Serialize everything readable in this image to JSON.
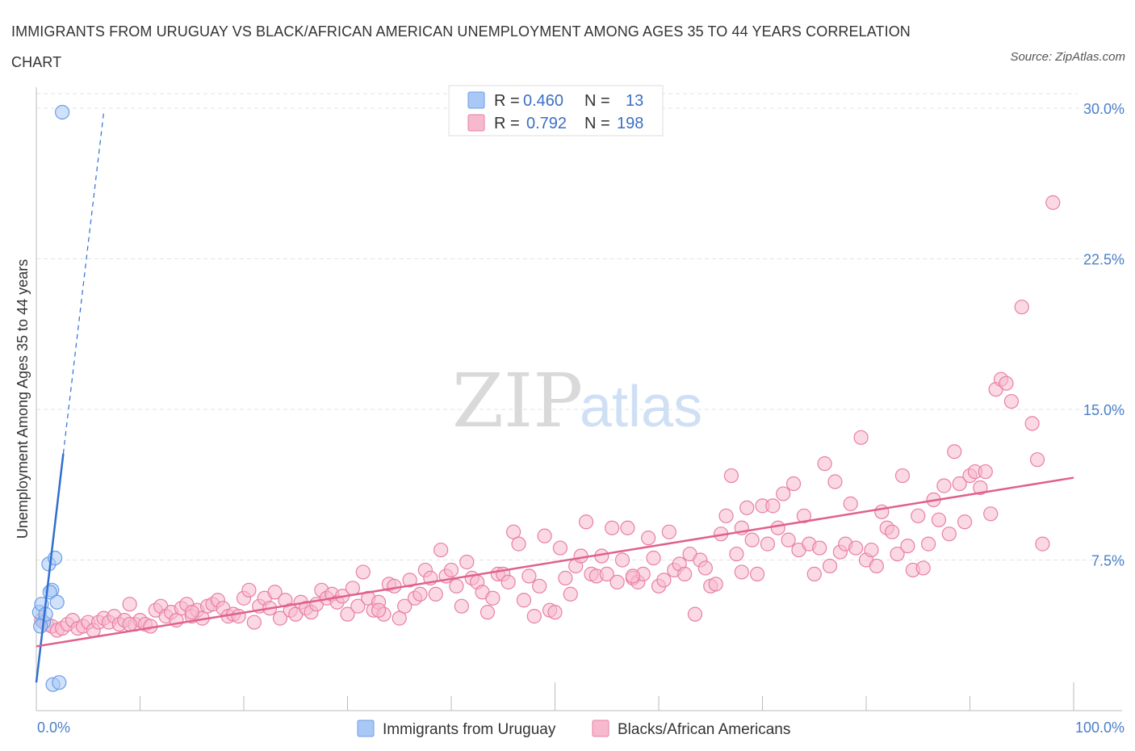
{
  "title": "IMMIGRANTS FROM URUGUAY VS BLACK/AFRICAN AMERICAN UNEMPLOYMENT AMONG AGES 35 TO 44 YEARS CORRELATION CHART",
  "source": "Source: ZipAtlas.com",
  "watermark": {
    "zip": "ZIP",
    "atlas": "atlas"
  },
  "legend": {
    "rows": [
      {
        "r_label": "R = ",
        "r_value": "0.460",
        "n_label": "N = ",
        "n_value": "13",
        "color": "#a9c8f5"
      },
      {
        "r_label": "R = ",
        "r_value": "0.792",
        "n_label": "N = ",
        "n_value": "198",
        "color": "#f7b9cd"
      }
    ]
  },
  "chart_data": {
    "type": "scatter",
    "xlabel": "",
    "ylabel": "Unemployment Among Ages 35 to 44 years",
    "xlim": [
      0,
      100
    ],
    "ylim": [
      0,
      30
    ],
    "x_tick_labels": [
      "0.0%",
      "100.0%"
    ],
    "y_ticks": [
      7.5,
      15.0,
      22.5,
      30.0
    ],
    "y_tick_labels": [
      "7.5%",
      "15.0%",
      "22.5%",
      "30.0%"
    ],
    "grid": true,
    "legend_position": "bottom-center",
    "series": [
      {
        "name": "Immigrants from Uruguay",
        "color": "#6a9ee8",
        "fill": "#a9c8f5",
        "trend": {
          "x": [
            0.0,
            2.6
          ],
          "y": [
            1.4,
            12.8
          ],
          "dashed_to": [
            6.5,
            29.8
          ],
          "color": "#2f6fd0"
        },
        "points": [
          [
            2.5,
            29.8
          ],
          [
            0.3,
            4.9
          ],
          [
            0.5,
            5.3
          ],
          [
            0.7,
            4.4
          ],
          [
            0.9,
            4.8
          ],
          [
            1.2,
            7.3
          ],
          [
            1.5,
            6.0
          ],
          [
            1.3,
            5.9
          ],
          [
            1.8,
            7.6
          ],
          [
            2.0,
            5.4
          ],
          [
            0.4,
            4.2
          ],
          [
            1.6,
            1.3
          ],
          [
            2.2,
            1.4
          ]
        ]
      },
      {
        "name": "Blacks/African Americans",
        "color": "#e87fa3",
        "fill": "#f7b9cd",
        "trend": {
          "x": [
            0.0,
            100.0
          ],
          "y": [
            3.2,
            11.6
          ],
          "color": "#e0608e"
        },
        "points": [
          [
            0.5,
            4.5
          ],
          [
            1.0,
            4.3
          ],
          [
            1.5,
            4.2
          ],
          [
            2.0,
            4.0
          ],
          [
            2.5,
            4.1
          ],
          [
            3.0,
            4.3
          ],
          [
            3.5,
            4.5
          ],
          [
            4.0,
            4.1
          ],
          [
            4.5,
            4.2
          ],
          [
            5.0,
            4.4
          ],
          [
            5.5,
            4.0
          ],
          [
            6.0,
            4.4
          ],
          [
            6.5,
            4.6
          ],
          [
            7.0,
            4.4
          ],
          [
            7.5,
            4.7
          ],
          [
            8.0,
            4.3
          ],
          [
            8.5,
            4.5
          ],
          [
            9.0,
            5.3
          ],
          [
            9.5,
            4.3
          ],
          [
            10.0,
            4.5
          ],
          [
            10.5,
            4.3
          ],
          [
            11.0,
            4.2
          ],
          [
            11.5,
            5.0
          ],
          [
            12.0,
            5.2
          ],
          [
            12.5,
            4.7
          ],
          [
            13.0,
            4.9
          ],
          [
            13.5,
            4.5
          ],
          [
            14.0,
            5.1
          ],
          [
            14.5,
            5.3
          ],
          [
            15.0,
            4.7
          ],
          [
            15.5,
            5.0
          ],
          [
            16.0,
            4.6
          ],
          [
            16.5,
            5.2
          ],
          [
            17.0,
            5.3
          ],
          [
            17.5,
            5.5
          ],
          [
            18.0,
            5.1
          ],
          [
            18.5,
            4.7
          ],
          [
            19.0,
            4.8
          ],
          [
            19.5,
            4.7
          ],
          [
            20.0,
            5.6
          ],
          [
            20.5,
            6.0
          ],
          [
            21.0,
            4.4
          ],
          [
            21.5,
            5.2
          ],
          [
            22.0,
            5.6
          ],
          [
            22.5,
            5.1
          ],
          [
            23.0,
            5.9
          ],
          [
            23.5,
            4.6
          ],
          [
            24.0,
            5.5
          ],
          [
            24.5,
            5.0
          ],
          [
            25.0,
            4.8
          ],
          [
            25.5,
            5.4
          ],
          [
            26.0,
            5.1
          ],
          [
            26.5,
            4.9
          ],
          [
            27.0,
            5.3
          ],
          [
            27.5,
            6.0
          ],
          [
            28.0,
            5.6
          ],
          [
            28.5,
            5.8
          ],
          [
            29.0,
            5.4
          ],
          [
            29.5,
            5.7
          ],
          [
            30.0,
            4.8
          ],
          [
            30.5,
            6.1
          ],
          [
            31.0,
            5.2
          ],
          [
            31.5,
            6.9
          ],
          [
            32.0,
            5.6
          ],
          [
            32.5,
            5.0
          ],
          [
            33.0,
            5.4
          ],
          [
            33.5,
            4.8
          ],
          [
            34.0,
            6.3
          ],
          [
            34.5,
            6.2
          ],
          [
            35.0,
            4.6
          ],
          [
            35.5,
            5.2
          ],
          [
            36.0,
            6.5
          ],
          [
            36.5,
            5.6
          ],
          [
            37.0,
            5.8
          ],
          [
            37.5,
            7.0
          ],
          [
            38.0,
            6.6
          ],
          [
            38.5,
            5.8
          ],
          [
            39.0,
            8.0
          ],
          [
            39.5,
            6.7
          ],
          [
            40.0,
            7.0
          ],
          [
            40.5,
            6.2
          ],
          [
            41.0,
            5.2
          ],
          [
            41.5,
            7.4
          ],
          [
            42.0,
            6.6
          ],
          [
            42.5,
            6.4
          ],
          [
            43.0,
            5.9
          ],
          [
            43.5,
            4.9
          ],
          [
            44.0,
            5.6
          ],
          [
            44.5,
            6.8
          ],
          [
            45.0,
            6.8
          ],
          [
            45.5,
            6.4
          ],
          [
            46.0,
            8.9
          ],
          [
            46.5,
            8.3
          ],
          [
            47.0,
            5.5
          ],
          [
            47.5,
            6.7
          ],
          [
            48.0,
            4.7
          ],
          [
            48.5,
            6.2
          ],
          [
            49.0,
            8.7
          ],
          [
            49.5,
            5.0
          ],
          [
            50.0,
            4.9
          ],
          [
            50.5,
            8.1
          ],
          [
            51.0,
            6.6
          ],
          [
            51.5,
            5.8
          ],
          [
            52.0,
            7.2
          ],
          [
            52.5,
            7.7
          ],
          [
            53.0,
            9.4
          ],
          [
            53.5,
            6.8
          ],
          [
            54.0,
            6.7
          ],
          [
            54.5,
            7.7
          ],
          [
            55.0,
            6.8
          ],
          [
            55.5,
            9.1
          ],
          [
            56.0,
            6.4
          ],
          [
            56.5,
            7.5
          ],
          [
            57.0,
            9.1
          ],
          [
            57.5,
            6.6
          ],
          [
            58.0,
            6.4
          ],
          [
            58.5,
            6.8
          ],
          [
            59.0,
            8.6
          ],
          [
            59.5,
            7.6
          ],
          [
            60.0,
            6.2
          ],
          [
            60.5,
            6.5
          ],
          [
            61.0,
            8.9
          ],
          [
            61.5,
            7.0
          ],
          [
            62.0,
            7.3
          ],
          [
            62.5,
            6.8
          ],
          [
            63.0,
            7.8
          ],
          [
            63.5,
            4.8
          ],
          [
            64.0,
            7.5
          ],
          [
            64.5,
            7.1
          ],
          [
            65.0,
            6.2
          ],
          [
            65.5,
            6.3
          ],
          [
            66.0,
            8.8
          ],
          [
            66.5,
            9.7
          ],
          [
            67.0,
            11.7
          ],
          [
            67.5,
            7.8
          ],
          [
            68.0,
            9.1
          ],
          [
            68.5,
            10.1
          ],
          [
            69.0,
            8.5
          ],
          [
            69.5,
            6.8
          ],
          [
            70.0,
            10.2
          ],
          [
            70.5,
            8.3
          ],
          [
            71.0,
            10.2
          ],
          [
            71.5,
            9.1
          ],
          [
            72.0,
            10.8
          ],
          [
            72.5,
            8.5
          ],
          [
            73.0,
            11.3
          ],
          [
            73.5,
            8.0
          ],
          [
            74.0,
            9.7
          ],
          [
            74.5,
            8.3
          ],
          [
            75.0,
            6.8
          ],
          [
            75.5,
            8.1
          ],
          [
            76.0,
            12.3
          ],
          [
            76.5,
            7.2
          ],
          [
            77.0,
            11.4
          ],
          [
            77.5,
            7.9
          ],
          [
            78.0,
            8.3
          ],
          [
            78.5,
            10.3
          ],
          [
            79.0,
            8.1
          ],
          [
            79.5,
            13.6
          ],
          [
            80.0,
            7.5
          ],
          [
            80.5,
            8.0
          ],
          [
            81.0,
            7.2
          ],
          [
            81.5,
            9.9
          ],
          [
            82.0,
            9.1
          ],
          [
            82.5,
            8.9
          ],
          [
            83.0,
            7.8
          ],
          [
            83.5,
            11.7
          ],
          [
            84.0,
            8.2
          ],
          [
            84.5,
            7.0
          ],
          [
            85.0,
            9.7
          ],
          [
            85.5,
            7.1
          ],
          [
            86.0,
            8.3
          ],
          [
            86.5,
            10.5
          ],
          [
            87.0,
            9.5
          ],
          [
            87.5,
            11.2
          ],
          [
            88.0,
            8.8
          ],
          [
            88.5,
            12.9
          ],
          [
            89.0,
            11.3
          ],
          [
            89.5,
            9.4
          ],
          [
            90.0,
            11.7
          ],
          [
            90.5,
            11.9
          ],
          [
            91.0,
            11.1
          ],
          [
            91.5,
            11.9
          ],
          [
            92.0,
            9.8
          ],
          [
            92.5,
            16.0
          ],
          [
            93.0,
            16.5
          ],
          [
            93.5,
            16.3
          ],
          [
            94.0,
            15.4
          ],
          [
            95.0,
            20.1
          ],
          [
            96.0,
            14.3
          ],
          [
            96.5,
            12.5
          ],
          [
            97.0,
            8.3
          ],
          [
            98.0,
            25.3
          ],
          [
            68.0,
            6.9
          ],
          [
            57.5,
            6.7
          ],
          [
            33.0,
            5.0
          ],
          [
            15.0,
            4.9
          ],
          [
            9.0,
            4.3
          ]
        ]
      }
    ]
  }
}
